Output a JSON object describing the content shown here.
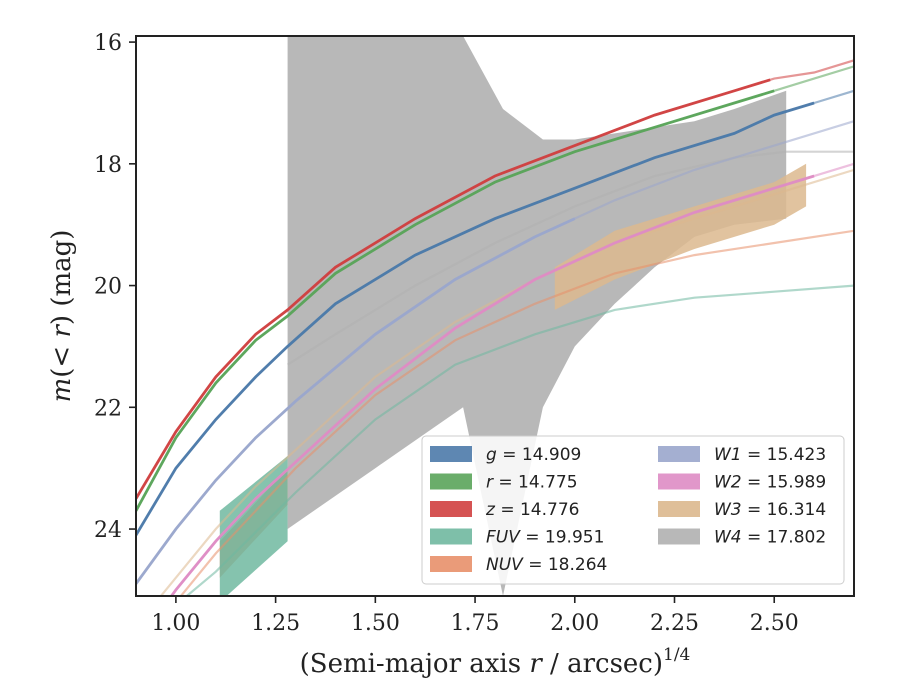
{
  "chart_data": {
    "type": "line",
    "xlabel": "(Semi-major axis r / arcsec)^1/4",
    "ylabel": "m(< r) (mag)",
    "xlim": [
      0.9,
      2.7
    ],
    "ylim": [
      25.1,
      15.9
    ],
    "y_inverted": true,
    "x_ticks": [
      "1.00",
      "1.25",
      "1.50",
      "1.75",
      "2.00",
      "2.25",
      "2.50"
    ],
    "y_ticks": [
      "16",
      "18",
      "20",
      "22",
      "24"
    ],
    "legend_placement": "lower-right",
    "legend_columns": 2,
    "series": [
      {
        "name": "g",
        "value": "14.909",
        "color": "#4c7aaa",
        "band": false,
        "x": [
          0.9,
          1.0,
          1.1,
          1.2,
          1.28,
          1.4,
          1.6,
          1.8,
          2.0,
          2.2,
          2.4,
          2.5,
          2.6,
          2.7
        ],
        "y": [
          24.1,
          23.0,
          22.2,
          21.5,
          21.0,
          20.3,
          19.5,
          18.9,
          18.4,
          17.9,
          17.5,
          17.2,
          17.0,
          16.8
        ],
        "solid_until": 2.6
      },
      {
        "name": "r",
        "value": "14.775",
        "color": "#5aa45a",
        "band": false,
        "x": [
          0.9,
          1.0,
          1.1,
          1.2,
          1.28,
          1.4,
          1.6,
          1.8,
          2.0,
          2.2,
          2.4,
          2.5,
          2.6,
          2.7
        ],
        "y": [
          23.7,
          22.5,
          21.6,
          20.9,
          20.5,
          19.8,
          19.0,
          18.3,
          17.8,
          17.4,
          17.0,
          16.8,
          16.6,
          16.4
        ],
        "solid_until": 2.5
      },
      {
        "name": "z",
        "value": "14.776",
        "color": "#d04040",
        "band": false,
        "x": [
          0.9,
          1.0,
          1.1,
          1.2,
          1.28,
          1.4,
          1.6,
          1.8,
          2.0,
          2.2,
          2.4,
          2.5,
          2.6,
          2.7
        ],
        "y": [
          23.5,
          22.4,
          21.5,
          20.8,
          20.4,
          19.7,
          18.9,
          18.2,
          17.7,
          17.2,
          16.8,
          16.6,
          16.5,
          16.3
        ],
        "solid_until": 2.49
      },
      {
        "name": "FUV",
        "value": "19.951",
        "color": "#70b8a0",
        "band": true,
        "x": [
          0.9,
          1.1,
          1.3,
          1.5,
          1.7,
          1.9,
          2.1,
          2.3,
          2.5,
          2.7
        ],
        "y": [
          25.8,
          24.7,
          23.4,
          22.2,
          21.3,
          20.8,
          20.4,
          20.2,
          20.1,
          20.0
        ],
        "band_x": [
          1.11,
          1.28
        ],
        "band_upper": [
          23.7,
          22.8
        ],
        "band_lower": [
          25.2,
          24.2
        ]
      },
      {
        "name": "NUV",
        "value": "18.264",
        "color": "#e8906a",
        "band": true,
        "x": [
          0.9,
          1.1,
          1.3,
          1.5,
          1.7,
          1.9,
          2.1,
          2.3,
          2.5,
          2.7
        ],
        "y": [
          26.0,
          24.4,
          23.0,
          21.8,
          20.9,
          20.3,
          19.8,
          19.5,
          19.3,
          19.1
        ],
        "band_x": [
          1.11,
          1.28
        ],
        "band_upper": [
          24.2,
          23.0
        ],
        "band_lower": [
          24.8,
          23.6
        ]
      },
      {
        "name": "W1",
        "value": "15.423",
        "color": "#9aa6cc",
        "band": false,
        "x": [
          0.9,
          1.0,
          1.1,
          1.2,
          1.3,
          1.5,
          1.7,
          1.9,
          2.1,
          2.3,
          2.5,
          2.7
        ],
        "y": [
          24.9,
          24.0,
          23.2,
          22.5,
          21.9,
          20.8,
          19.9,
          19.2,
          18.6,
          18.1,
          17.7,
          17.3
        ],
        "solid_until": 2.0
      },
      {
        "name": "W2",
        "value": "15.989",
        "color": "#de8cc4",
        "band": false,
        "x": [
          0.9,
          1.0,
          1.1,
          1.2,
          1.3,
          1.5,
          1.7,
          1.9,
          2.1,
          2.3,
          2.5,
          2.7
        ],
        "y": [
          25.9,
          25.0,
          24.2,
          23.5,
          22.9,
          21.7,
          20.7,
          19.9,
          19.3,
          18.8,
          18.4,
          18.0
        ],
        "solid_until": 2.6
      },
      {
        "name": "W3",
        "value": "16.314",
        "color": "#dcb88e",
        "band": true,
        "x": [
          0.9,
          1.0,
          1.1,
          1.2,
          1.3,
          1.5,
          1.7,
          1.9,
          2.1,
          2.3,
          2.5,
          2.7
        ],
        "y": [
          25.6,
          24.8,
          24.0,
          23.3,
          22.7,
          21.5,
          20.6,
          19.9,
          19.3,
          18.9,
          18.5,
          18.1
        ],
        "band_x": [
          1.95,
          2.1,
          2.3,
          2.5,
          2.58
        ],
        "band_upper": [
          19.7,
          19.1,
          18.7,
          18.3,
          18.0
        ],
        "band_lower": [
          20.4,
          19.9,
          19.4,
          19.0,
          18.7
        ]
      },
      {
        "name": "W4",
        "value": "17.802",
        "color": "#b0b0b0",
        "band": true,
        "x": [
          1.28,
          1.4,
          1.6,
          1.8,
          2.0,
          2.2,
          2.4,
          2.53,
          2.7
        ],
        "y": [
          21.3,
          20.8,
          20.0,
          19.3,
          18.7,
          18.2,
          17.9,
          17.8,
          17.8
        ],
        "band_x": [
          1.28,
          1.5,
          1.72,
          1.82,
          1.92,
          2.0,
          2.1,
          2.2,
          2.3,
          2.4,
          2.53
        ],
        "band_upper": [
          15.9,
          15.9,
          15.9,
          17.1,
          17.6,
          17.6,
          17.5,
          17.4,
          17.3,
          17.1,
          16.8
        ],
        "band_lower": [
          24.0,
          23.0,
          22.0,
          25.1,
          22.0,
          21.0,
          20.3,
          19.7,
          19.2,
          19.0,
          18.9
        ]
      }
    ]
  }
}
